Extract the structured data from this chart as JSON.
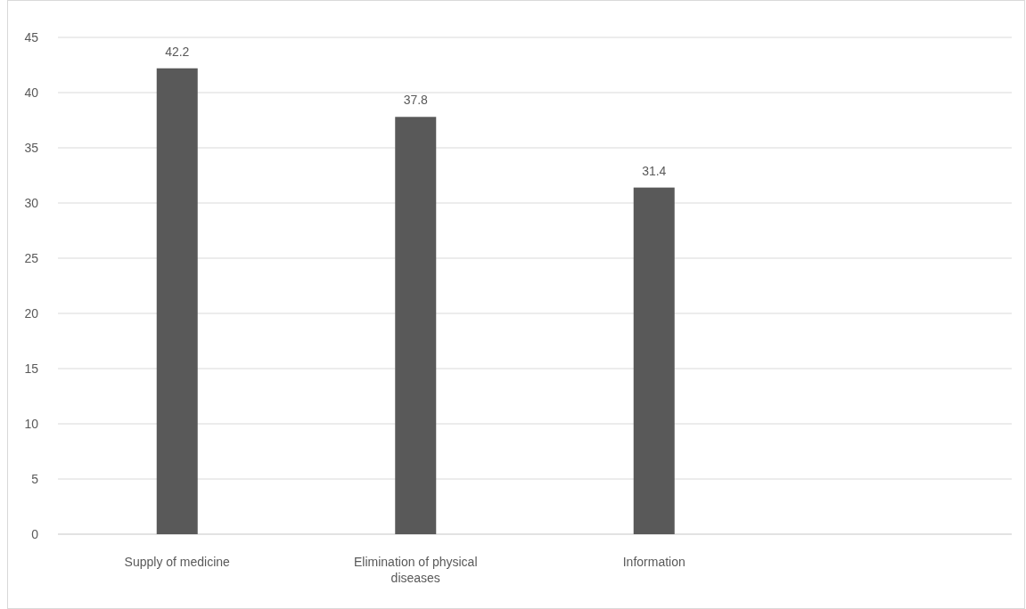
{
  "chart_data": {
    "type": "bar",
    "categories": [
      "Supply of medicine",
      "Elimination of physical diseases",
      "Information",
      null
    ],
    "values": [
      42.2,
      37.8,
      31.4,
      null
    ],
    "color": "#595959",
    "ylim": [
      0,
      45
    ],
    "yticks": [
      0,
      5,
      10,
      15,
      20,
      25,
      30,
      35,
      40,
      45
    ],
    "grid": "y",
    "data_labels": true
  }
}
